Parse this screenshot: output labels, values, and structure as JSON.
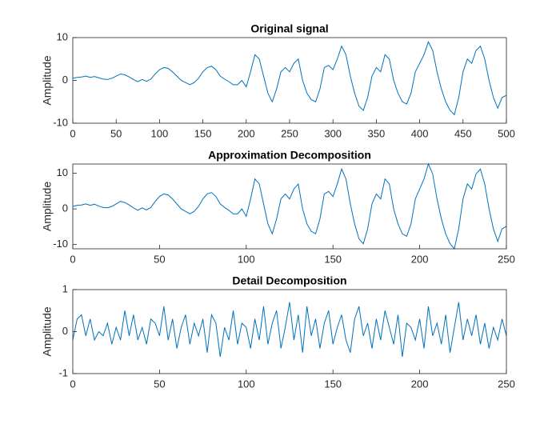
{
  "chart_data": [
    {
      "type": "line",
      "title": "Original signal",
      "y_label": "Amplitude",
      "xlim": [
        0,
        500
      ],
      "xticks": [
        0,
        50,
        100,
        150,
        200,
        250,
        300,
        350,
        400,
        450,
        500
      ],
      "ylim": [
        -10,
        10
      ],
      "yticks": [
        -10,
        0,
        10
      ],
      "x": [
        0,
        5,
        10,
        15,
        20,
        25,
        30,
        35,
        40,
        45,
        50,
        55,
        60,
        65,
        70,
        75,
        80,
        85,
        90,
        95,
        100,
        105,
        110,
        115,
        120,
        125,
        130,
        135,
        140,
        145,
        150,
        155,
        160,
        165,
        170,
        175,
        180,
        185,
        190,
        195,
        200,
        205,
        210,
        215,
        220,
        225,
        230,
        235,
        240,
        245,
        250,
        255,
        260,
        265,
        270,
        275,
        280,
        285,
        290,
        295,
        300,
        305,
        310,
        315,
        320,
        325,
        330,
        335,
        340,
        345,
        350,
        355,
        360,
        365,
        370,
        375,
        380,
        385,
        390,
        395,
        400,
        405,
        410,
        415,
        420,
        425,
        430,
        435,
        440,
        445,
        450,
        455,
        460,
        465,
        470,
        475,
        480,
        485,
        490,
        495,
        500
      ],
      "series": [
        {
          "color": "#0072bd",
          "values": [
            0.5,
            0.7,
            0.8,
            1,
            0.7,
            0.9,
            0.6,
            0.3,
            0.2,
            0.5,
            1,
            1.5,
            1.3,
            0.8,
            0.2,
            -0.3,
            0.2,
            -0.2,
            0.3,
            1.5,
            2.5,
            3,
            2.8,
            2,
            1,
            0,
            -0.5,
            -1,
            -0.5,
            0.5,
            2,
            3,
            3.3,
            2.5,
            1,
            0.3,
            -0.3,
            -1,
            -1,
            0,
            -1.5,
            2,
            6,
            5,
            1,
            -3,
            -5,
            -2,
            2,
            3,
            2,
            4,
            5,
            0,
            -3,
            -4.5,
            -5,
            -2,
            3,
            3.5,
            2.5,
            5,
            8,
            6,
            1,
            -3,
            -6,
            -7,
            -4,
            1,
            3,
            2,
            6,
            5,
            0,
            -3,
            -5,
            -5.5,
            -3,
            2,
            4,
            6,
            9,
            7,
            2,
            -2,
            -5,
            -7,
            -8,
            -4,
            2,
            5,
            4,
            7,
            8,
            5,
            0,
            -4,
            -6.5,
            -4,
            -3.5
          ]
        }
      ]
    },
    {
      "type": "line",
      "title": "Approximation Decomposition",
      "y_label": "Amplitude",
      "xlim": [
        0,
        250
      ],
      "xticks": [
        0,
        50,
        100,
        150,
        200,
        250
      ],
      "ylim": [
        -11.2,
        12.6
      ],
      "yticks": [
        -10,
        0,
        10
      ],
      "x": [
        0,
        2.5,
        5,
        7.5,
        10,
        12.5,
        15,
        17.5,
        20,
        22.5,
        25,
        27.5,
        30,
        32.5,
        35,
        37.5,
        40,
        42.5,
        45,
        47.5,
        50,
        52.5,
        55,
        57.5,
        60,
        62.5,
        65,
        67.5,
        70,
        72.5,
        75,
        77.5,
        80,
        82.5,
        85,
        87.5,
        90,
        92.5,
        95,
        97.5,
        100,
        102.5,
        105,
        107.5,
        110,
        112.5,
        115,
        117.5,
        120,
        122.5,
        125,
        127.5,
        130,
        132.5,
        135,
        137.5,
        140,
        142.5,
        145,
        147.5,
        150,
        152.5,
        155,
        157.5,
        160,
        162.5,
        165,
        167.5,
        170,
        172.5,
        175,
        177.5,
        180,
        182.5,
        185,
        187.5,
        190,
        192.5,
        195,
        197.5,
        200,
        202.5,
        205,
        207.5,
        210,
        212.5,
        215,
        217.5,
        220,
        222.5,
        225,
        227.5,
        230,
        232.5,
        235,
        237.5,
        240,
        242.5,
        245,
        247.5,
        250
      ],
      "series": [
        {
          "color": "#0072bd",
          "values": [
            0.7,
            1,
            1.1,
            1.4,
            1,
            1.3,
            0.8,
            0.4,
            0.3,
            0.7,
            1.4,
            2.1,
            1.8,
            1.1,
            0.3,
            -0.4,
            0.3,
            -0.3,
            0.4,
            2.1,
            3.5,
            4.2,
            3.9,
            2.8,
            1.4,
            0,
            -0.7,
            -1.4,
            -0.7,
            0.7,
            2.8,
            4.2,
            4.6,
            3.5,
            1.4,
            0.4,
            -0.4,
            -1.4,
            -1.4,
            0,
            -2.1,
            2.8,
            8.4,
            7,
            1.4,
            -4.2,
            -7,
            -2.8,
            2.8,
            4.2,
            2.8,
            5.6,
            7,
            0,
            -4.2,
            -6.3,
            -7,
            -2.8,
            4.2,
            4.9,
            3.5,
            7,
            11.2,
            8.4,
            1.4,
            -4.2,
            -8.4,
            -9.8,
            -5.6,
            1.4,
            4.2,
            2.8,
            8.4,
            7,
            0,
            -4.2,
            -7,
            -7.7,
            -4.2,
            2.8,
            5.6,
            8.4,
            12.6,
            9.8,
            2.8,
            -2.8,
            -7,
            -9.8,
            -11.2,
            -5.6,
            2.8,
            7,
            5.6,
            9.8,
            11.2,
            7,
            0,
            -5.6,
            -9.1,
            -5.6,
            -4.9
          ]
        }
      ]
    },
    {
      "type": "line",
      "title": "Detail Decomposition",
      "y_label": "Amplitude",
      "xlim": [
        0,
        250
      ],
      "xticks": [
        0,
        50,
        100,
        150,
        200,
        250
      ],
      "ylim": [
        -1,
        1
      ],
      "yticks": [
        -1,
        0,
        1
      ],
      "x": [
        0,
        2.5,
        5,
        7.5,
        10,
        12.5,
        15,
        17.5,
        20,
        22.5,
        25,
        27.5,
        30,
        32.5,
        35,
        37.5,
        40,
        42.5,
        45,
        47.5,
        50,
        52.5,
        55,
        57.5,
        60,
        62.5,
        65,
        67.5,
        70,
        72.5,
        75,
        77.5,
        80,
        82.5,
        85,
        87.5,
        90,
        92.5,
        95,
        97.5,
        100,
        102.5,
        105,
        107.5,
        110,
        112.5,
        115,
        117.5,
        120,
        122.5,
        125,
        127.5,
        130,
        132.5,
        135,
        137.5,
        140,
        142.5,
        145,
        147.5,
        150,
        152.5,
        155,
        157.5,
        160,
        162.5,
        165,
        167.5,
        170,
        172.5,
        175,
        177.5,
        180,
        182.5,
        185,
        187.5,
        190,
        192.5,
        195,
        197.5,
        200,
        202.5,
        205,
        207.5,
        210,
        212.5,
        215,
        217.5,
        220,
        222.5,
        225,
        227.5,
        230,
        232.5,
        235,
        237.5,
        240,
        242.5,
        245,
        247.5,
        250
      ],
      "series": [
        {
          "color": "#0072bd",
          "values": [
            -0.2,
            0.3,
            0.4,
            -0.1,
            0.3,
            -0.2,
            0,
            -0.1,
            0.2,
            -0.3,
            0.1,
            -0.2,
            0.5,
            -0.1,
            0.4,
            -0.2,
            0.1,
            -0.3,
            0.3,
            0.2,
            -0.1,
            0.6,
            -0.2,
            0.3,
            -0.4,
            0.1,
            0.4,
            -0.3,
            0.2,
            -0.1,
            0.3,
            -0.5,
            0.4,
            0.2,
            -0.6,
            0.1,
            -0.2,
            0.5,
            -0.3,
            0.2,
            0.1,
            -0.4,
            0.3,
            -0.2,
            0.6,
            -0.3,
            0.2,
            0.5,
            -0.4,
            0.1,
            0.7,
            -0.2,
            0.4,
            -0.5,
            0.6,
            -0.1,
            0.3,
            -0.4,
            0.2,
            0.5,
            -0.3,
            0.1,
            0.4,
            -0.2,
            -0.5,
            0.3,
            0.6,
            -0.1,
            0.2,
            -0.4,
            0.3,
            -0.2,
            0.5,
            0.1,
            -0.3,
            0.4,
            -0.6,
            0.2,
            0.1,
            -0.2,
            0.3,
            -0.4,
            0.6,
            -0.1,
            0.2,
            -0.3,
            0.4,
            -0.5,
            0.1,
            0.7,
            -0.2,
            0.3,
            -0.1,
            0.4,
            -0.3,
            0.2,
            -0.4,
            0.1,
            -0.2,
            0.3,
            -0.1
          ]
        }
      ]
    }
  ]
}
